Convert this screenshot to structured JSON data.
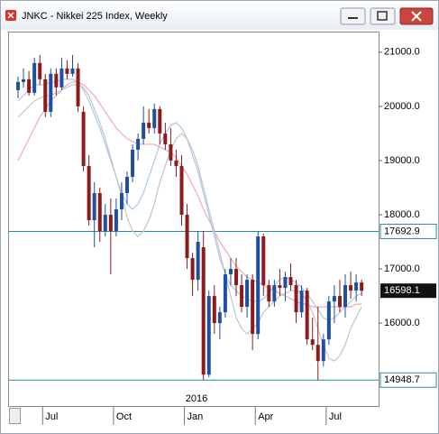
{
  "window": {
    "title": "JNKC - Nikkei 225 Index, Weekly"
  },
  "chart_data": {
    "type": "candlestick",
    "categories": [
      null,
      null,
      null,
      null,
      null,
      "Jul",
      null,
      null,
      null,
      null,
      null,
      null,
      null,
      null,
      null,
      null,
      null,
      null,
      "Oct",
      null,
      null,
      null,
      null,
      null,
      null,
      null,
      null,
      null,
      null,
      null,
      null,
      "Jan",
      null,
      null,
      null,
      null,
      null,
      null,
      null,
      null,
      null,
      null,
      null,
      null,
      "Apr",
      null,
      null,
      null,
      null,
      null,
      null,
      null,
      null,
      null,
      null,
      null,
      null,
      "Jul",
      null,
      null,
      null,
      null,
      null,
      null
    ],
    "year_label": "2016",
    "open": [
      20300,
      20450,
      20500,
      20250,
      20800,
      20500,
      19900,
      20600,
      20350,
      20700,
      20600,
      20700,
      19900,
      18900,
      17900,
      18400,
      17700,
      18000,
      17700,
      18100,
      18400,
      18700,
      19200,
      19400,
      19700,
      19600,
      19950,
      19500,
      19300,
      19000,
      18900,
      18000,
      17200,
      16800,
      17400,
      15050,
      16500,
      16000,
      16200,
      16900,
      17000,
      16700,
      16300,
      16800,
      15800,
      17600,
      16700,
      16400,
      16700,
      16650,
      16850,
      16700,
      16200,
      16600,
      15700,
      15600,
      15300,
      15700,
      16400,
      16500,
      16300,
      16700,
      16600,
      16750
    ],
    "high": [
      20550,
      20700,
      20650,
      20900,
      20950,
      20600,
      20700,
      20700,
      20900,
      20850,
      20950,
      20800,
      20000,
      19100,
      18600,
      18500,
      18200,
      18300,
      18300,
      18600,
      18800,
      19300,
      19500,
      20000,
      19950,
      20050,
      20000,
      19700,
      19600,
      19200,
      19100,
      18200,
      17300,
      17700,
      17700,
      16600,
      16700,
      16300,
      17000,
      17200,
      17200,
      16900,
      16900,
      16900,
      17700,
      17650,
      16800,
      16800,
      17000,
      16950,
      17100,
      16800,
      16700,
      16650,
      16100,
      16300,
      15800,
      16500,
      16700,
      16800,
      16900,
      16950,
      16900,
      16800
    ],
    "low": [
      20150,
      20350,
      20200,
      20200,
      20400,
      19800,
      19800,
      20200,
      20300,
      20500,
      20550,
      19900,
      18800,
      17800,
      17400,
      17500,
      17600,
      16900,
      17600,
      17900,
      18200,
      18600,
      19000,
      19300,
      19500,
      19500,
      19300,
      19200,
      18900,
      18700,
      17800,
      17000,
      16500,
      16600,
      14950,
      15000,
      15800,
      15700,
      16100,
      16700,
      16500,
      16200,
      16100,
      15500,
      15700,
      16500,
      16300,
      16300,
      16500,
      16400,
      16600,
      16000,
      16100,
      15600,
      15500,
      14950,
      15200,
      15600,
      16000,
      16200,
      16100,
      16450,
      16400,
      16500
    ],
    "close": [
      20450,
      20500,
      20250,
      20800,
      20500,
      19900,
      20600,
      20350,
      20700,
      20600,
      20700,
      20000,
      18900,
      17900,
      18400,
      17700,
      18000,
      17700,
      18100,
      18400,
      18700,
      19200,
      19400,
      19700,
      19600,
      19950,
      19500,
      19300,
      19000,
      18900,
      18000,
      17200,
      16800,
      17500,
      15050,
      16500,
      16000,
      16200,
      16900,
      17000,
      16700,
      16300,
      16800,
      15800,
      17600,
      16700,
      16400,
      16700,
      16650,
      16850,
      16700,
      16200,
      16600,
      15700,
      15600,
      15300,
      15700,
      16400,
      16500,
      16300,
      16700,
      16600,
      16750,
      16598.1
    ],
    "up_color": "#1f4fa0",
    "down_color": "#8a1c1c",
    "series": [
      {
        "color": "#f4a6b8",
        "values": [
          19000,
          19200,
          19400,
          19600,
          19800,
          19950,
          20100,
          20200,
          20300,
          20400,
          20450,
          20450,
          20400,
          20300,
          20200,
          20050,
          19900,
          19750,
          19600,
          19500,
          19400,
          19350,
          19300,
          19300,
          19300,
          19300,
          19250,
          19200,
          19150,
          19050,
          18900,
          18750,
          18550,
          18350,
          18100,
          17900,
          17700,
          17500,
          17350,
          17200,
          17050,
          16950,
          16850,
          16800,
          16750,
          16700,
          16650,
          16600,
          16550,
          16500,
          16450,
          16400,
          16350,
          16350,
          16300,
          16300,
          16300,
          16300,
          16300,
          16300,
          16300,
          16300,
          16350,
          16350
        ]
      },
      {
        "color": "#a9c8ec",
        "values": [
          20100,
          20200,
          20300,
          20400,
          20400,
          20400,
          20450,
          20450,
          20500,
          20500,
          20500,
          20450,
          20300,
          20100,
          19850,
          19600,
          19300,
          19000,
          18700,
          18400,
          18200,
          18100,
          18200,
          18400,
          18700,
          19000,
          19300,
          19500,
          19650,
          19700,
          19600,
          19400,
          19100,
          18800,
          18400,
          18000,
          17600,
          17200,
          16900,
          16700,
          16600,
          16500,
          16450,
          16400,
          16400,
          16450,
          16550,
          16700,
          16800,
          16850,
          16800,
          16750,
          16650,
          16550,
          16400,
          16250,
          16100,
          16050,
          16100,
          16200,
          16300,
          16400,
          16500,
          16550
        ]
      },
      {
        "color": "#c4c4c4",
        "values": [
          19800,
          19900,
          20000,
          20100,
          20150,
          20200,
          20200,
          20250,
          20300,
          20350,
          20400,
          20400,
          20350,
          20200,
          19950,
          19700,
          19400,
          19050,
          18700,
          18350,
          17950,
          17700,
          17600,
          17700,
          17900,
          18200,
          18600,
          18900,
          19200,
          19400,
          19500,
          19400,
          19200,
          18900,
          18500,
          18100,
          17700,
          17300,
          16900,
          16500,
          16100,
          15900,
          15800,
          15900,
          16000,
          16200,
          16300,
          16400,
          16500,
          16550,
          16600,
          16600,
          16550,
          16400,
          16200,
          15900,
          15600,
          15350,
          15300,
          15400,
          15600,
          15900,
          16100,
          16300
        ]
      }
    ],
    "hlines": [
      {
        "value": 17692.9,
        "color": "#2a8c99"
      },
      {
        "value": 14948.7,
        "color": "#2a8c99"
      }
    ],
    "last_price": 16598.1,
    "ylim": [
      14470,
      21380
    ],
    "yticks": [
      {
        "value": 16000,
        "label": "16000.0"
      },
      {
        "value": 17000,
        "label": "17000.0"
      },
      {
        "value": 18000,
        "label": "18000.0"
      },
      {
        "value": 19000,
        "label": "19000.0"
      },
      {
        "value": 20000,
        "label": "20000.0"
      },
      {
        "value": 21000,
        "label": "21000.0"
      }
    ]
  }
}
